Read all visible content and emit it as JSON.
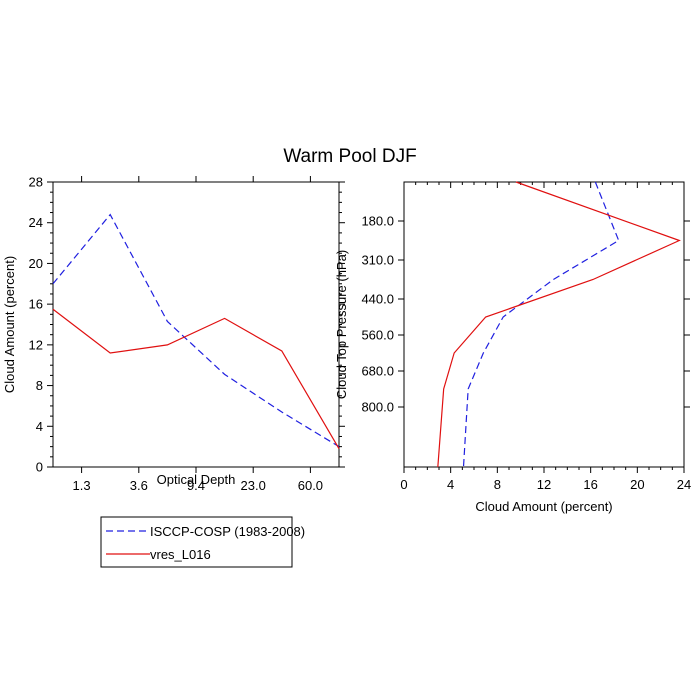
{
  "title": "Warm Pool DJF",
  "colors": {
    "obs": "#2020e0",
    "model": "#e01010",
    "axis": "#000000"
  },
  "legend": {
    "entries": [
      {
        "label": "ISCCP-COSP (1983-2008)",
        "color": "#2020e0",
        "dash": "dashed"
      },
      {
        "label": "vres_L016",
        "color": "#e01010",
        "dash": "solid"
      }
    ]
  },
  "chart_data": [
    {
      "type": "line",
      "name": "optical-depth-panel",
      "xlabel": "Optical Depth",
      "ylabel": "Cloud Amount (percent)",
      "x_index": [
        0,
        1,
        2,
        3,
        4,
        5
      ],
      "x_ticklabels": [
        "1.3",
        "3.6",
        "9.4",
        "23.0",
        "60.0"
      ],
      "x_tick_positions": [
        0.5,
        1.5,
        2.5,
        3.5,
        4.5
      ],
      "ylim": [
        0,
        28
      ],
      "yticks": [
        0,
        4,
        8,
        12,
        16,
        20,
        24,
        28
      ],
      "series": [
        {
          "name": "ISCCP-COSP (1983-2008)",
          "values": [
            18.0,
            24.8,
            14.3,
            9.1,
            5.4,
            2.0
          ]
        },
        {
          "name": "vres_L016",
          "values": [
            15.5,
            11.2,
            12.0,
            14.6,
            11.4,
            1.8
          ]
        }
      ]
    },
    {
      "type": "line",
      "name": "pressure-panel",
      "xlabel": "Cloud Amount (percent)",
      "ylabel": "Cloud Top Pressure (hPa)",
      "xlim": [
        0,
        24
      ],
      "xticks": [
        0,
        4,
        8,
        12,
        16,
        20,
        24
      ],
      "ylim": [
        50,
        1000
      ],
      "y_ticklabels": [
        "180.0",
        "310.0",
        "440.0",
        "560.0",
        "680.0",
        "800.0"
      ],
      "y_tick_positions": [
        180,
        310,
        440,
        560,
        680,
        800
      ],
      "levels": [
        50,
        245,
        375,
        500,
        620,
        740,
        1000
      ],
      "series": [
        {
          "name": "ISCCP-COSP (1983-2008)",
          "values": [
            16.4,
            18.4,
            12.8,
            8.5,
            6.8,
            5.5,
            5.1
          ]
        },
        {
          "name": "vres_L016",
          "values": [
            9.6,
            23.6,
            16.2,
            7.0,
            4.3,
            3.4,
            2.9
          ]
        }
      ]
    }
  ]
}
